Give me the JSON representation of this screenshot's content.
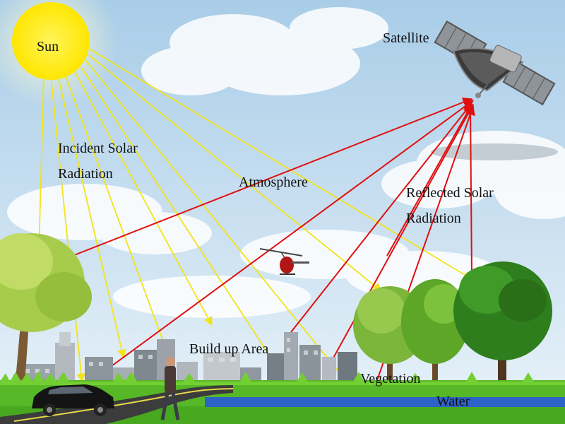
{
  "labels": {
    "sun": "Sun",
    "satellite": "Satellite",
    "incident_line1": "Incident Solar",
    "incident_line2": "Radiation",
    "atmosphere": "Atmosphere",
    "reflected_line1": "Reflected Solar",
    "reflected_line2": "Radiation",
    "build_up_area": "Build up Area",
    "vegetation": "Vegetation",
    "water": "Water"
  },
  "colors": {
    "sky_top": "#a9cde8",
    "sky_bottom": "#e6f1f8",
    "sun": "#ffef1a",
    "incident_ray": "#f2e418",
    "reflected_ray": "#e01010",
    "grass": "#56b827",
    "water": "#2d62c8",
    "road": "#3c3c3c",
    "foliage": "#4f9a22"
  },
  "icons": [
    "sun-icon",
    "satellite-icon",
    "helicopter-icon",
    "car-icon",
    "person-icon",
    "tree-icon",
    "building-icon"
  ]
}
